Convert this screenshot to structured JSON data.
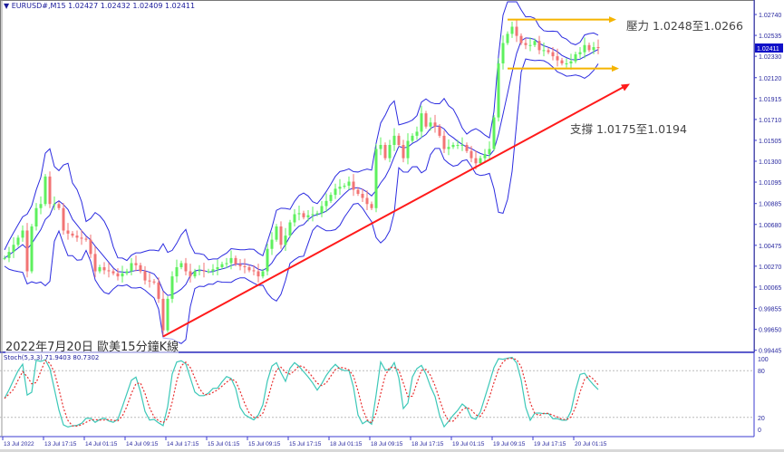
{
  "header": {
    "collapse_icon": "triangle-down-icon",
    "symbol": "EURUSD#,M15",
    "ohlc": "1.02427 1.02432 1.02409 1.02411"
  },
  "annotations": {
    "resistance": "壓力 1.0248至1.0266",
    "support": "支撐 1.0175至1.0194",
    "caption": "2022年7月20日 歐美15分鐘K線"
  },
  "stoch": {
    "label": "Stoch(5,3,3) 71.9403 80.7302",
    "levels": [
      "100",
      "80",
      "20",
      "0"
    ],
    "k_color": "#3cc8b8",
    "d_color": "#e83030"
  },
  "colors": {
    "bull": "#5ef05e",
    "bear": "#f27474",
    "bands": "#2c2ce0",
    "support_line": "#ff1a1a",
    "resistance_lines": "#f5b400",
    "axis": "#3b3bd0",
    "price_tag": "#1010c8"
  },
  "chart_data": {
    "type": "candlestick",
    "symbol": "EURUSD#",
    "timeframe": "M15",
    "current_price": "1.02411",
    "y_ticks": [
      "1.02740",
      "1.02535",
      "1.02330",
      "1.02120",
      "1.01915",
      "1.01710",
      "1.01505",
      "1.01300",
      "1.01095",
      "1.00885",
      "1.00680",
      "1.00475",
      "1.00270",
      "1.00065",
      "0.99855",
      "0.99650",
      "0.99445"
    ],
    "ylim": [
      0.99445,
      1.0276
    ],
    "x_ticks": [
      "13 Jul 2022",
      "13 Jul 17:15",
      "14 Jul 01:15",
      "14 Jul 09:15",
      "14 Jul 17:15",
      "15 Jul 01:15",
      "15 Jul 09:15",
      "15 Jul 17:15",
      "18 Jul 01:15",
      "18 Jul 09:15",
      "18 Jul 17:15",
      "19 Jul 01:15",
      "19 Jul 09:15",
      "19 Jul 17:15",
      "20 Jul 01:15"
    ],
    "close": [
      1.0035,
      1.0041,
      1.0048,
      1.0055,
      1.0062,
      1.0022,
      1.0066,
      1.0084,
      1.0088,
      1.0115,
      1.0088,
      1.0088,
      1.0084,
      1.0062,
      1.0059,
      1.0057,
      1.0055,
      1.0054,
      1.0053,
      1.0039,
      1.0022,
      1.0026,
      1.0023,
      1.0022,
      1.002,
      1.0017,
      1.002,
      1.0022,
      1.003,
      1.0028,
      1.0022,
      1.0013,
      1.0012,
      1.0011,
      0.9995,
      0.9964,
      0.9995,
      1.0017,
      1.0026,
      1.003,
      1.0022,
      1.0017,
      1.0022,
      1.0023,
      1.0022,
      1.0022,
      1.0024,
      1.0026,
      1.0029,
      1.003,
      1.0035,
      1.0029,
      1.0027,
      1.0026,
      1.0023,
      1.0022,
      1.0017,
      1.0022,
      1.0044,
      1.0053,
      1.0066,
      1.0048,
      1.0057,
      1.007,
      1.0078,
      1.0079,
      1.0075,
      1.0077,
      1.0078,
      1.0079,
      1.0086,
      1.0091,
      1.0097,
      1.0103,
      1.0105,
      1.0106,
      1.011,
      1.0102,
      1.0098,
      1.0094,
      1.0088,
      1.0084,
      1.0142,
      1.0146,
      1.0133,
      1.0146,
      1.0155,
      1.0146,
      1.0133,
      1.015,
      1.0155,
      1.0159,
      1.0177,
      1.0164,
      1.0168,
      1.0164,
      1.0155,
      1.0142,
      1.0144,
      1.0146,
      1.0146,
      1.0146,
      1.014,
      1.0133,
      1.0128,
      1.0133,
      1.0137,
      1.0142,
      1.0173,
      1.0226,
      1.0246,
      1.0255,
      1.0262,
      1.0253,
      1.0246,
      1.0244,
      1.0244,
      1.0248,
      1.0239,
      1.0239,
      1.0237,
      1.0233,
      1.0229,
      1.0226,
      1.0226,
      1.0228,
      1.0235,
      1.0237,
      1.0244,
      1.0239,
      1.0242,
      1.0241
    ],
    "indicators": [
      "Bollinger Bands",
      "Stochastic(5,3,3)"
    ],
    "resistance_upper": 1.0269,
    "resistance_lower": 1.0221,
    "support_trendline": [
      [
        35,
        0.9958
      ],
      [
        138,
        1.0206
      ]
    ]
  }
}
